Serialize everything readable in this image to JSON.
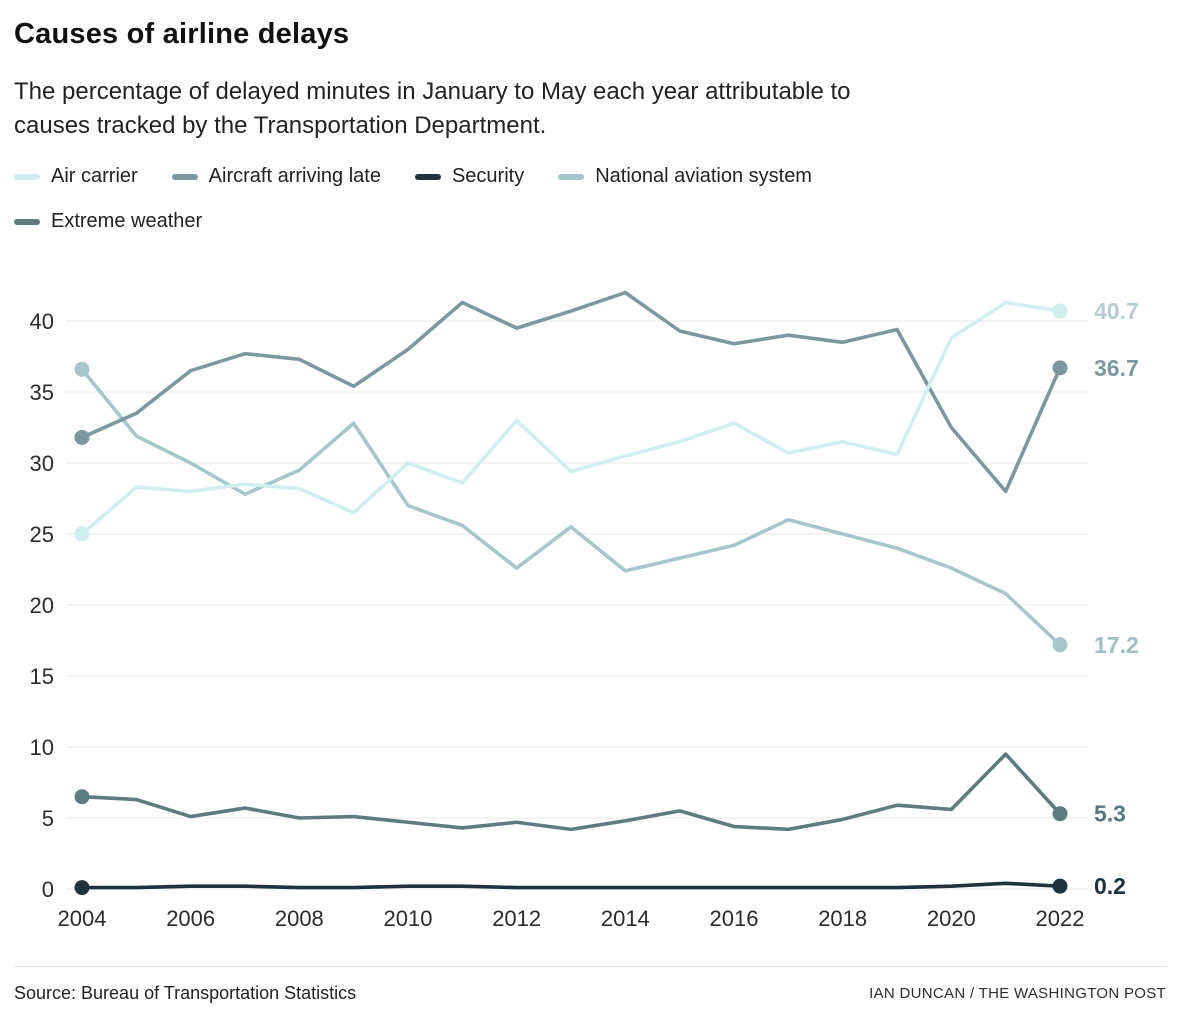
{
  "header": {
    "title": "Causes of airline delays",
    "subtitle": "The percentage of delayed minutes in January to May each year attributable to\ncauses tracked by the Transportation Department."
  },
  "footer": {
    "source": "Source: Bureau of Transportation Statistics",
    "credit": "IAN DUNCAN / THE WASHINGTON POST"
  },
  "chart_data": {
    "type": "line",
    "title": "Causes of airline delays",
    "x": [
      2004,
      2005,
      2006,
      2007,
      2008,
      2009,
      2010,
      2011,
      2012,
      2013,
      2014,
      2015,
      2016,
      2017,
      2018,
      2019,
      2020,
      2021,
      2022
    ],
    "x_tick_labels": [
      "2004",
      "2006",
      "2008",
      "2010",
      "2012",
      "2014",
      "2016",
      "2018",
      "2020",
      "2022"
    ],
    "y_ticks": [
      0,
      5,
      10,
      15,
      20,
      25,
      30,
      35,
      40
    ],
    "ylim": [
      0,
      43
    ],
    "grid": "horizontal",
    "legend_position": "top",
    "series": [
      {
        "name": "Air carrier",
        "color": "#cfeef0",
        "label_color": "#b4cdd0",
        "end_label": "40.7",
        "values": [
          25.0,
          28.3,
          28.0,
          28.5,
          28.2,
          26.5,
          30.0,
          28.6,
          33.0,
          29.4,
          30.5,
          31.5,
          32.8,
          30.7,
          31.5,
          30.6,
          38.8,
          41.3,
          40.7
        ]
      },
      {
        "name": "Aircraft arriving late",
        "color": "#7b98a1",
        "label_color": "#7b98a1",
        "end_label": "36.7",
        "values": [
          31.8,
          33.5,
          36.5,
          37.7,
          37.3,
          35.4,
          38.0,
          41.3,
          39.5,
          40.7,
          42.0,
          39.3,
          38.4,
          39.0,
          38.5,
          39.4,
          32.5,
          28.0,
          36.7
        ]
      },
      {
        "name": "Security",
        "color": "#1e333d",
        "label_color": "#1e333d",
        "end_label": "0.2",
        "values": [
          0.1,
          0.1,
          0.2,
          0.2,
          0.1,
          0.1,
          0.2,
          0.2,
          0.1,
          0.1,
          0.1,
          0.1,
          0.1,
          0.1,
          0.1,
          0.1,
          0.2,
          0.4,
          0.2
        ]
      },
      {
        "name": "National aviation system",
        "color": "#a5c6cb",
        "label_color": "#9cbec4",
        "end_label": "17.2",
        "values": [
          36.6,
          31.9,
          30.0,
          27.8,
          29.5,
          32.8,
          27.0,
          25.6,
          22.6,
          25.5,
          22.4,
          23.3,
          24.2,
          26.0,
          25.0,
          24.0,
          22.6,
          20.8,
          17.2
        ]
      },
      {
        "name": "Extreme weather",
        "color": "#5d7c80",
        "label_color": "#56777b",
        "end_label": "5.3",
        "values": [
          6.5,
          6.3,
          5.1,
          5.7,
          5.0,
          5.1,
          4.7,
          4.3,
          4.7,
          4.2,
          4.8,
          5.5,
          4.4,
          4.2,
          4.9,
          5.9,
          5.6,
          9.5,
          5.3
        ]
      }
    ]
  }
}
